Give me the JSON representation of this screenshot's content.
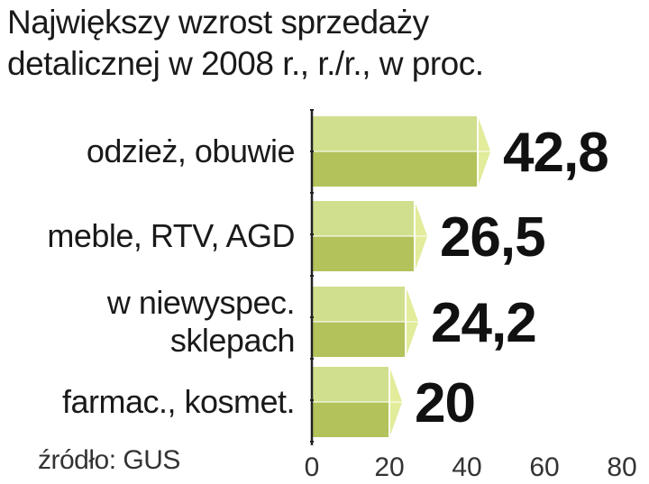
{
  "chart_data": {
    "type": "bar",
    "orientation": "horizontal",
    "title_lines": [
      "Największy wzrost sprzedaży",
      "detalicznej w 2008 r., r./r., w proc."
    ],
    "categories": [
      [
        "odzież, obuwie"
      ],
      [
        "meble, RTV, AGD"
      ],
      [
        "w niewyspec.",
        "sklepach"
      ],
      [
        "farmac., kosmet."
      ]
    ],
    "values": [
      42.8,
      26.5,
      24.2,
      20
    ],
    "value_labels": [
      "42,8",
      "26,5",
      "24,2",
      "20"
    ],
    "xticks": [
      0,
      20,
      40,
      60,
      80
    ],
    "xlim": [
      0,
      80
    ],
    "grid": false,
    "legend": "none"
  },
  "source": "źródło: GUS",
  "colors": {
    "bar_top": "#d0df8e",
    "bar_bottom": "#b3c25a",
    "bar_cap": "#e2ec9a",
    "bar_edge": "#ffffff",
    "axis": "#222222",
    "value_text": "#111111"
  }
}
